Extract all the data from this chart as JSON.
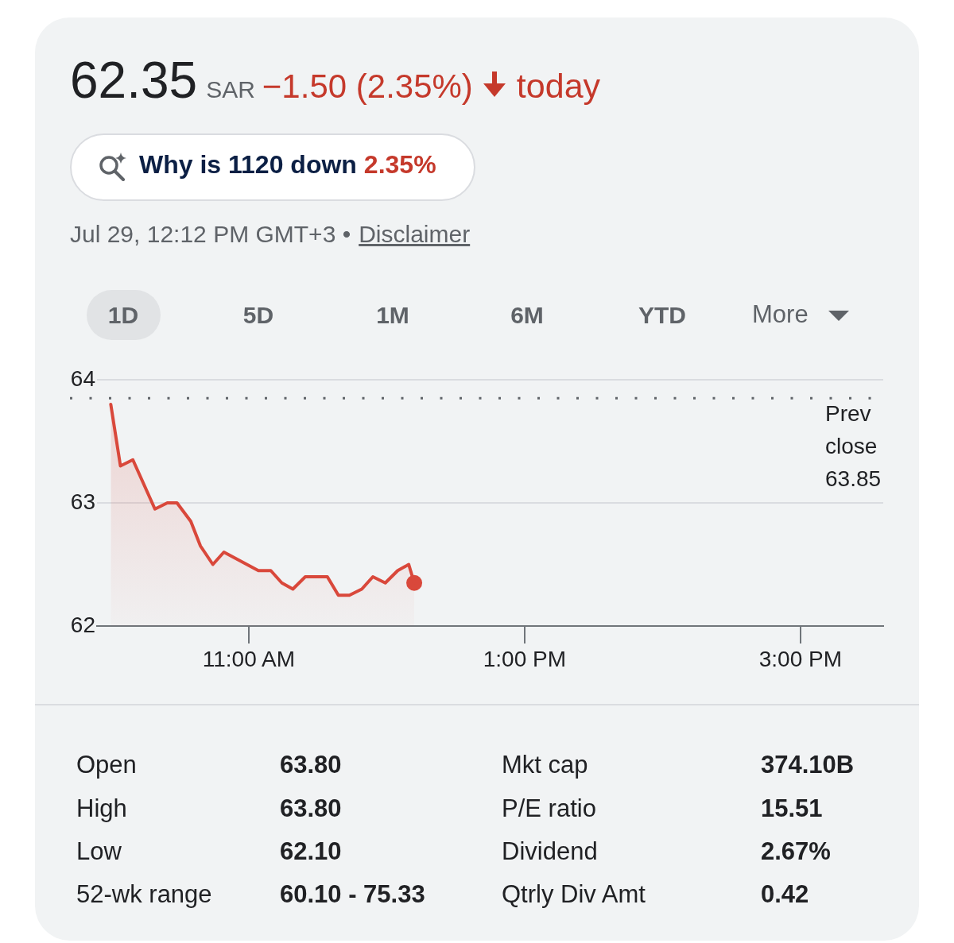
{
  "chart_data": {
    "type": "area",
    "title": "62.35",
    "subtitle": "SAR",
    "x": [
      10.0,
      10.07,
      10.16,
      10.32,
      10.41,
      10.48,
      10.58,
      10.65,
      10.74,
      10.82,
      11.07,
      11.16,
      11.24,
      11.32,
      11.41,
      11.57,
      11.65,
      11.73,
      11.82,
      11.9,
      11.99,
      12.08,
      12.16,
      12.2
    ],
    "series": [
      {
        "color": "#d9483b",
        "marker": "none",
        "values": [
          63.8,
          63.3,
          63.35,
          62.95,
          63.0,
          63.0,
          62.85,
          62.65,
          62.5,
          62.6,
          62.45,
          62.45,
          62.35,
          62.3,
          62.4,
          62.4,
          62.25,
          62.25,
          62.3,
          62.4,
          62.35,
          62.45,
          62.5,
          62.35
        ]
      },
      {
        "type": "scatter",
        "color": "#d9483b",
        "marker": "circle",
        "x": [
          12.2
        ],
        "values": [
          62.35
        ]
      }
    ],
    "xlim": [
      9.9,
      15.6
    ],
    "xticks": [
      {
        "value": 11,
        "label": "11:00 AM"
      },
      {
        "value": 13,
        "label": "1:00 PM"
      },
      {
        "value": 15,
        "label": "3:00 PM"
      }
    ],
    "ylim": [
      62,
      64
    ],
    "yticks": [
      62,
      63,
      64
    ],
    "grid": "y",
    "ref_lines": [
      {
        "axis": "y",
        "value": 63.85,
        "label": "Prev close 63.85",
        "line_style": "dotted",
        "color": "#5f6368"
      }
    ],
    "annotations": [
      "−1.50 (2.35%)",
      "today",
      "Why is 1120 down",
      "2.35%",
      "Jul 29, 12:12 PM GMT+3 •",
      "Disclaimer",
      "1D",
      "5D",
      "1M",
      "6M",
      "YTD",
      "More",
      "Open",
      "63.80",
      "High",
      "63.80",
      "Low",
      "62.10",
      "52-wk range",
      "60.10 - 75.33",
      "Mkt cap",
      "374.10B",
      "P/E ratio",
      "15.51",
      "Dividend",
      "2.67%",
      "Qtrly Div Amt",
      "0.42"
    ]
  }
}
